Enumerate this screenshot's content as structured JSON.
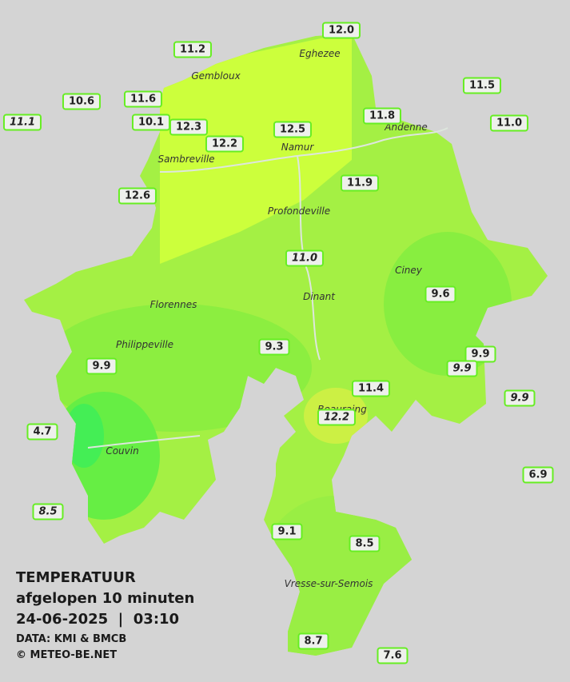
{
  "title": "TEMPERATUUR",
  "subtitle": "afgelopen 10 minuten",
  "timestamp": "24-06-2025  |  03:10",
  "credits": [
    "DATA: KMI & BMCB",
    "© METEO-BE.NET"
  ],
  "cities": [
    "Eghezee",
    "Gembloux",
    "Andenne",
    "Namur",
    "Sambreville",
    "Profondeville",
    "Ciney",
    "Dinant",
    "Florennes",
    "Philippeville",
    "Beauraing",
    "Couvin",
    "Vresse-sur-Semois"
  ],
  "stations": [
    "12.0",
    "11.2",
    "11.5",
    "10.6",
    "11.6",
    "11.1",
    "10.1",
    "12.3",
    "12.5",
    "11.8",
    "11.0",
    "12.2",
    "12.6",
    "11.9",
    "11.0",
    "9.6",
    "9.3",
    "9.9",
    "9.9",
    "9.9",
    "9.9",
    "11.4",
    "12.2",
    "4.7",
    "6.9",
    "8.5",
    "9.1",
    "8.5",
    "8.7",
    "7.6"
  ]
}
